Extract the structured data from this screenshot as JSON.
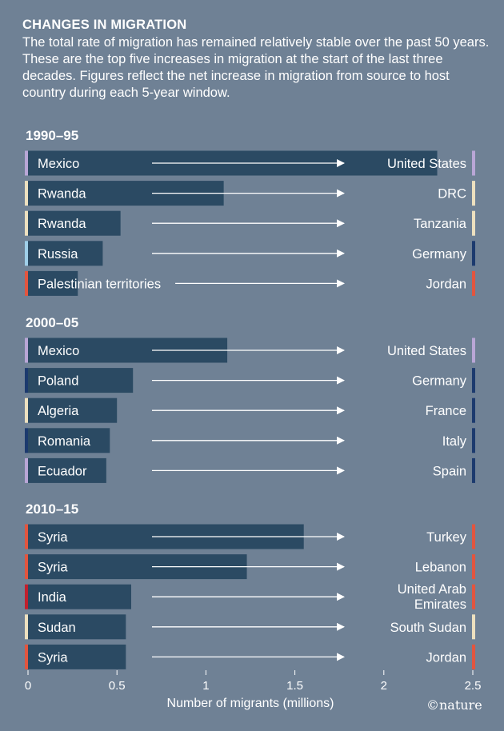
{
  "header": {
    "title": "CHANGES IN MIGRATION",
    "subtitle": "The total rate of migration has remained relatively stable over the past 50 years. These are the top five increases in migration at the start of the last three decades. Figures reflect the net increase in migration from source to host country during each 5-year window."
  },
  "brand": "©nature",
  "colors": {
    "background": "#6f8195",
    "bar": "#2b4a63",
    "arrow": "#ffffff",
    "country_markers": {
      "Mexico": "#b9a6d6",
      "United States": "#b9a6d6",
      "Rwanda": "#ede0bf",
      "DRC": "#ede0bf",
      "Tanzania": "#ede0bf",
      "Russia": "#9fcfe9",
      "Germany": "#1c3a6e",
      "Palestinian territories": "#e2553f",
      "Jordan": "#e2553f",
      "Poland": "#1c3a6e",
      "Algeria": "#ede0bf",
      "France": "#1c3a6e",
      "Romania": "#1c3a6e",
      "Italy": "#1c3a6e",
      "Ecuador": "#b9a6d6",
      "Spain": "#1c3a6e",
      "Syria": "#e2553f",
      "Turkey": "#e2553f",
      "Lebanon": "#e2553f",
      "India": "#c0202e",
      "United Arab Emirates": "#e2553f",
      "Sudan": "#ede0bf",
      "South Sudan": "#ede0bf"
    }
  },
  "chart_data": {
    "type": "bar",
    "orientation": "horizontal",
    "xlabel": "Number of migrants (millions)",
    "xlim": [
      0,
      2.5
    ],
    "xticks": [
      "0",
      "0.5",
      "1",
      "1.5",
      "2",
      "2.5"
    ],
    "groups": [
      {
        "title": "1990–95",
        "rows": [
          {
            "source": "Mexico",
            "destination": [
              "United States"
            ],
            "value": 2.3
          },
          {
            "source": "Rwanda",
            "destination": [
              "DRC"
            ],
            "value": 1.1
          },
          {
            "source": "Rwanda",
            "destination": [
              "Tanzania"
            ],
            "value": 0.52
          },
          {
            "source": "Russia",
            "destination": [
              "Germany"
            ],
            "value": 0.42
          },
          {
            "source": "Palestinian territories",
            "destination": [
              "Jordan"
            ],
            "value": 0.28
          }
        ]
      },
      {
        "title": "2000–05",
        "rows": [
          {
            "source": "Mexico",
            "destination": [
              "United States"
            ],
            "value": 1.12
          },
          {
            "source": "Poland",
            "destination": [
              "Germany"
            ],
            "value": 0.59
          },
          {
            "source": "Algeria",
            "destination": [
              "France"
            ],
            "value": 0.5
          },
          {
            "source": "Romania",
            "destination": [
              "Italy"
            ],
            "value": 0.46
          },
          {
            "source": "Ecuador",
            "destination": [
              "Spain"
            ],
            "value": 0.44
          }
        ]
      },
      {
        "title": "2010–15",
        "rows": [
          {
            "source": "Syria",
            "destination": [
              "Turkey"
            ],
            "value": 1.55
          },
          {
            "source": "Syria",
            "destination": [
              "Lebanon"
            ],
            "value": 1.23
          },
          {
            "source": "India",
            "destination": [
              "United Arab",
              "Emirates"
            ],
            "value": 0.58
          },
          {
            "source": "Sudan",
            "destination": [
              "South Sudan"
            ],
            "value": 0.55
          },
          {
            "source": "Syria",
            "destination": [
              "Jordan"
            ],
            "value": 0.55
          }
        ]
      }
    ]
  }
}
